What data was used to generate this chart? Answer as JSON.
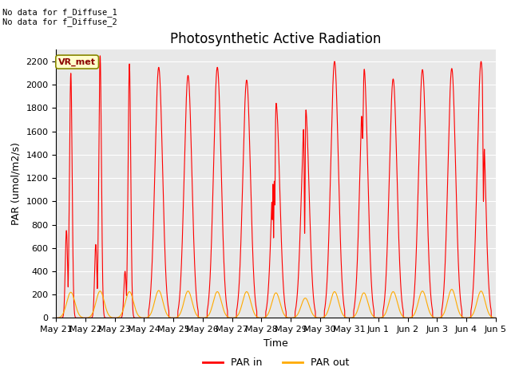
{
  "title": "Photosynthetic Active Radiation",
  "xlabel": "Time",
  "ylabel": "PAR (umol/m2/s)",
  "annotation_text": "No data for f_Diffuse_1\nNo data for f_Diffuse_2",
  "legend_label1": "PAR in",
  "legend_label2": "PAR out",
  "legend_color1": "#ff0000",
  "legend_color2": "#ffaa00",
  "vr_met_label": "VR_met",
  "background_color": "#ffffff",
  "plot_bg_color": "#e8e8e8",
  "ylim": [
    0,
    2300
  ],
  "yticks": [
    0,
    200,
    400,
    600,
    800,
    1000,
    1200,
    1400,
    1600,
    1800,
    2000,
    2200
  ],
  "x_tick_labels": [
    "May 21",
    "May 22",
    "May 23",
    "May 24",
    "May 25",
    "May 26",
    "May 27",
    "May 28",
    "May 29",
    "May 30",
    "May 31",
    "Jun 1",
    "Jun 2",
    "Jun 3",
    "Jun 4",
    "Jun 5"
  ],
  "n_days": 15,
  "par_in_peaks": [
    2100,
    2250,
    2180,
    2150,
    2080,
    2150,
    2040,
    1850,
    1830,
    2200,
    2160,
    2050,
    2130,
    2140,
    2200
  ],
  "par_in_secondary": [
    750,
    630,
    400,
    0,
    0,
    0,
    0,
    1010,
    750,
    0,
    1700,
    0,
    0,
    0,
    0
  ],
  "par_out_peaks": [
    220,
    230,
    225,
    235,
    230,
    225,
    225,
    215,
    170,
    225,
    215,
    225,
    230,
    245,
    230
  ],
  "par_in_color": "#ff0000",
  "par_out_color": "#ffaa00",
  "grid_color": "#ffffff",
  "title_fontsize": 12,
  "axis_fontsize": 9,
  "tick_fontsize": 8
}
